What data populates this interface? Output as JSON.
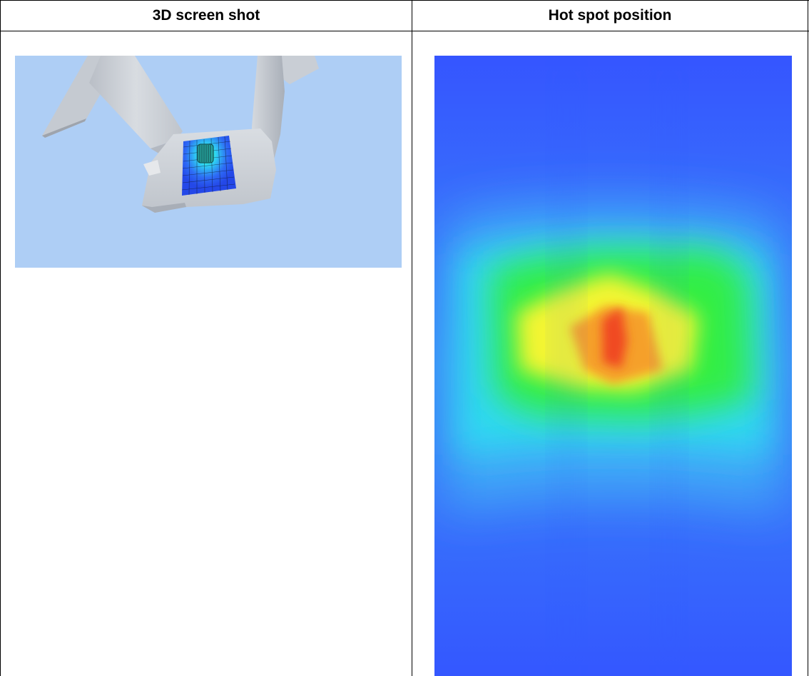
{
  "table": {
    "headers": [
      {
        "label": "3D screen shot"
      },
      {
        "label": "Hot spot position"
      }
    ]
  },
  "screenshot_3d": {
    "background_color": "#AECEF5",
    "model_color": "#C7CCD3",
    "icon": "3d-model-screenshot"
  },
  "heatmap": {
    "palette": [
      "#3A64FF",
      "#2FD9F2",
      "#33EE44",
      "#F3F530",
      "#F04A22"
    ],
    "icon": "hot-spot-heatmap"
  }
}
